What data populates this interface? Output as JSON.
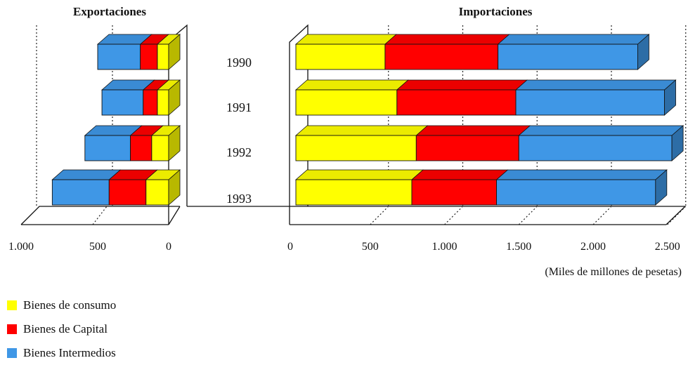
{
  "chart_data": [
    {
      "type": "bar",
      "orientation": "horizontal-stacked",
      "title": "Exportaciones",
      "categories": [
        "1990",
        "1991",
        "1992",
        "1993"
      ],
      "series": [
        {
          "name": "Bienes de consumo",
          "color": "#ffff00",
          "values": [
            80,
            80,
            120,
            160
          ]
        },
        {
          "name": "Bienes de Capital",
          "color": "#ff0000",
          "values": [
            120,
            100,
            150,
            260
          ]
        },
        {
          "name": "Bienes Intermedios",
          "color": "#3f97e6",
          "values": [
            300,
            290,
            320,
            400
          ]
        }
      ],
      "xlim": [
        1000,
        0
      ],
      "tick_values": [
        1000,
        500,
        0
      ],
      "tick_labels": [
        "1.000",
        "500",
        "0"
      ]
    },
    {
      "type": "bar",
      "orientation": "horizontal-stacked",
      "title": "Importaciones",
      "categories": [
        "1990",
        "1991",
        "1992",
        "1993"
      ],
      "series": [
        {
          "name": "Bienes de consumo",
          "color": "#ffff00",
          "values": [
            600,
            680,
            810,
            780
          ]
        },
        {
          "name": "Bienes de Capital",
          "color": "#ff0000",
          "values": [
            760,
            800,
            690,
            570
          ]
        },
        {
          "name": "Bienes Intermedios",
          "color": "#3f97e6",
          "values": [
            940,
            1000,
            1030,
            1070
          ]
        }
      ],
      "xlim": [
        0,
        2500
      ],
      "tick_values": [
        0,
        500,
        1000,
        1500,
        2000,
        2500
      ],
      "tick_labels": [
        "0",
        "500",
        "1.000",
        "1.500",
        "2.000",
        "2.500"
      ],
      "xlabel": "(Miles de millones de pesetas)"
    }
  ],
  "legend": [
    {
      "label": "Bienes de consumo",
      "color": "#ffff00"
    },
    {
      "label": "Bienes de Capital",
      "color": "#ff0000"
    },
    {
      "label": "Bienes Intermedios",
      "color": "#3f97e6"
    }
  ]
}
